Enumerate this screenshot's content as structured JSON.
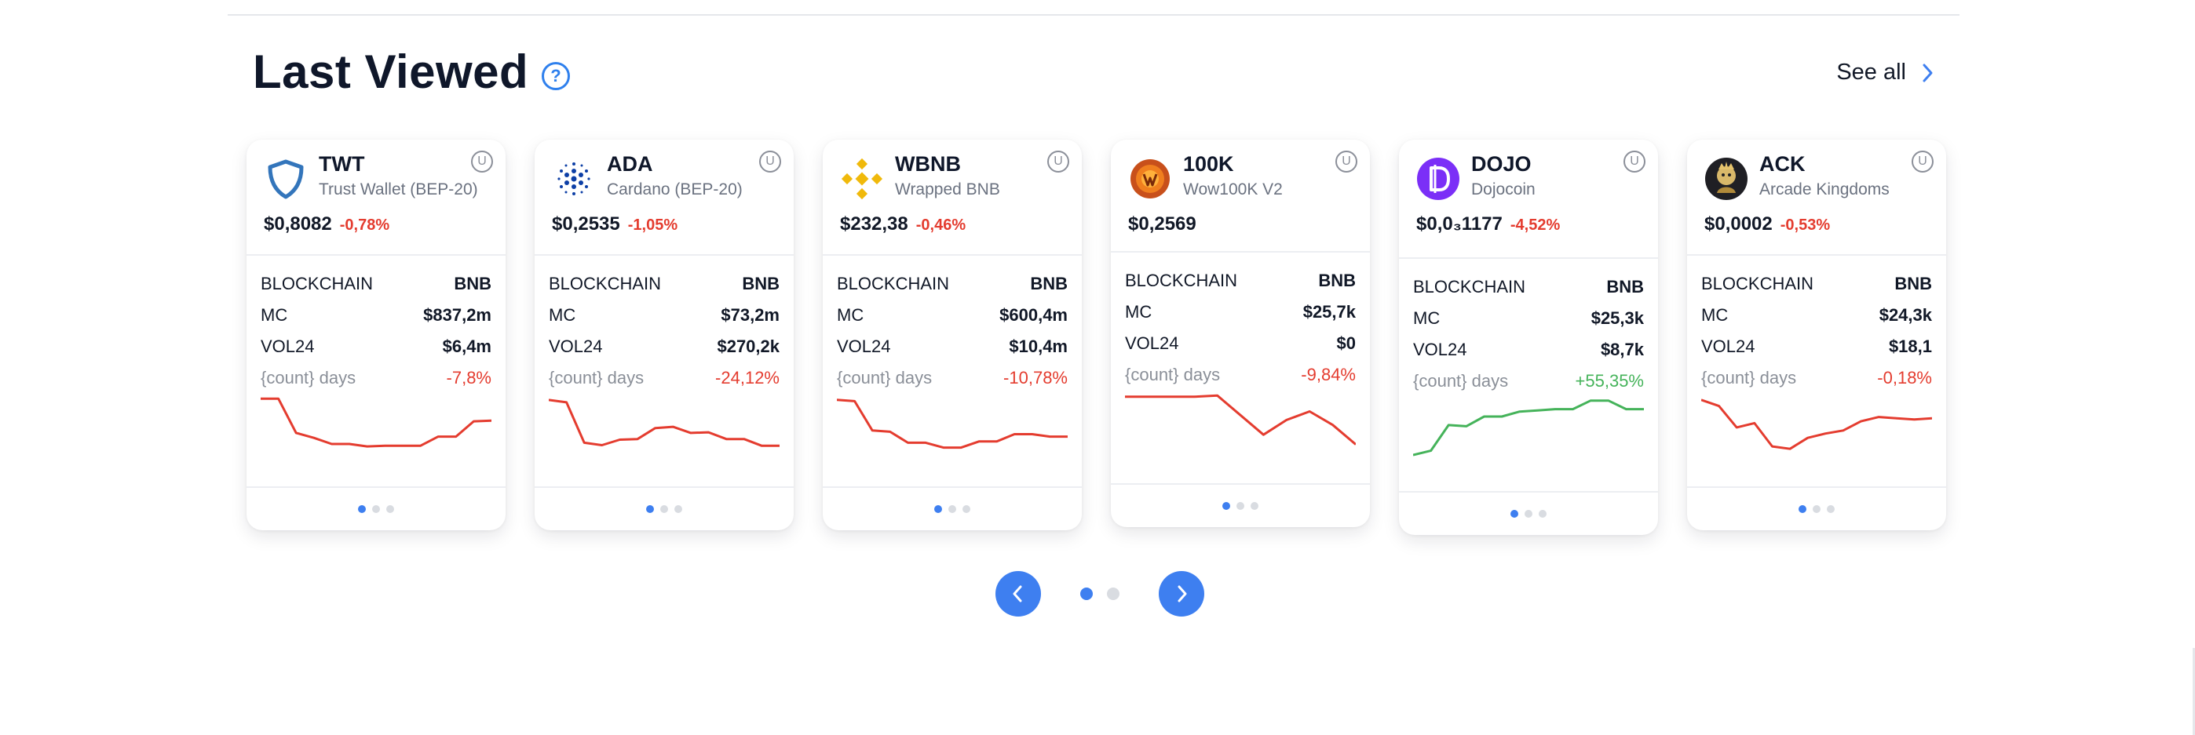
{
  "section": {
    "title": "Last Viewed",
    "help_icon": "question-circle-icon",
    "see_all": "See all"
  },
  "cards": [
    {
      "symbol": "TWT",
      "name": "Trust Wallet (BEP-20)",
      "price": "$0,8082",
      "change": "-0,78%",
      "blockchain": "BNB",
      "mc": "$837,2m",
      "vol24": "$6,4m",
      "days_change": "-7,8%",
      "icon": "trust-wallet-shield-icon",
      "spark": [
        0.92,
        0.92,
        0.36,
        0.28,
        0.18,
        0.18,
        0.14,
        0.15,
        0.15,
        0.15,
        0.3,
        0.3,
        0.55,
        0.56
      ]
    },
    {
      "symbol": "ADA",
      "name": "Cardano (BEP-20)",
      "price": "$0,2535",
      "change": "-1,05%",
      "blockchain": "BNB",
      "mc": "$73,2m",
      "vol24": "$270,2k",
      "days_change": "-24,12%",
      "icon": "cardano-icon",
      "spark": [
        0.9,
        0.86,
        0.2,
        0.16,
        0.25,
        0.26,
        0.44,
        0.46,
        0.36,
        0.37,
        0.26,
        0.26,
        0.15,
        0.15
      ]
    },
    {
      "symbol": "WBNB",
      "name": "Wrapped BNB",
      "price": "$232,38",
      "change": "-0,46%",
      "blockchain": "BNB",
      "mc": "$600,4m",
      "vol24": "$10,4m",
      "days_change": "-10,78%",
      "icon": "binance-icon",
      "spark": [
        0.9,
        0.88,
        0.4,
        0.38,
        0.2,
        0.2,
        0.12,
        0.12,
        0.22,
        0.22,
        0.34,
        0.34,
        0.3,
        0.3
      ]
    },
    {
      "symbol": "100K",
      "name": "Wow100K V2",
      "price": "$0,2569",
      "change": "",
      "blockchain": "BNB",
      "mc": "$25,7k",
      "vol24": "$0",
      "days_change": "-9,84%",
      "icon": "wow100k-coin-icon",
      "spark": [
        0.9,
        0.9,
        0.9,
        0.9,
        0.92,
        0.6,
        0.28,
        0.52,
        0.66,
        0.44,
        0.12
      ]
    },
    {
      "symbol": "DOJO",
      "name": "Dojocoin",
      "price": "$0,0₃1177",
      "change": "-4,52%",
      "blockchain": "BNB",
      "mc": "$25,3k",
      "vol24": "$8,7k",
      "days_change": "+55,35%",
      "icon": "dojocoin-icon",
      "spark": [
        0.05,
        0.12,
        0.54,
        0.52,
        0.68,
        0.68,
        0.76,
        0.78,
        0.8,
        0.8,
        0.94,
        0.94,
        0.8,
        0.8
      ]
    },
    {
      "symbol": "ACK",
      "name": "Arcade Kingdoms",
      "price": "$0,0002",
      "change": "-0,53%",
      "blockchain": "BNB",
      "mc": "$24,3k",
      "vol24": "$18,1",
      "days_change": "-0,18%",
      "icon": "arcade-kingdoms-icon",
      "spark": [
        0.9,
        0.8,
        0.45,
        0.52,
        0.14,
        0.1,
        0.28,
        0.35,
        0.4,
        0.55,
        0.62,
        0.6,
        0.58,
        0.6
      ]
    }
  ],
  "labels": {
    "blockchain": "BLOCKCHAIN",
    "mc": "MC",
    "vol24": "VOL24",
    "days": "{count} days"
  },
  "card_pagination": {
    "total": 3,
    "active": 1
  },
  "pager": {
    "total": 2,
    "active": 1,
    "prev_icon": "chevron-left-icon",
    "next_icon": "chevron-right-icon"
  },
  "colors": {
    "accent": "#3e7ff0",
    "down": "#e43c2f",
    "up": "#45b35a"
  }
}
